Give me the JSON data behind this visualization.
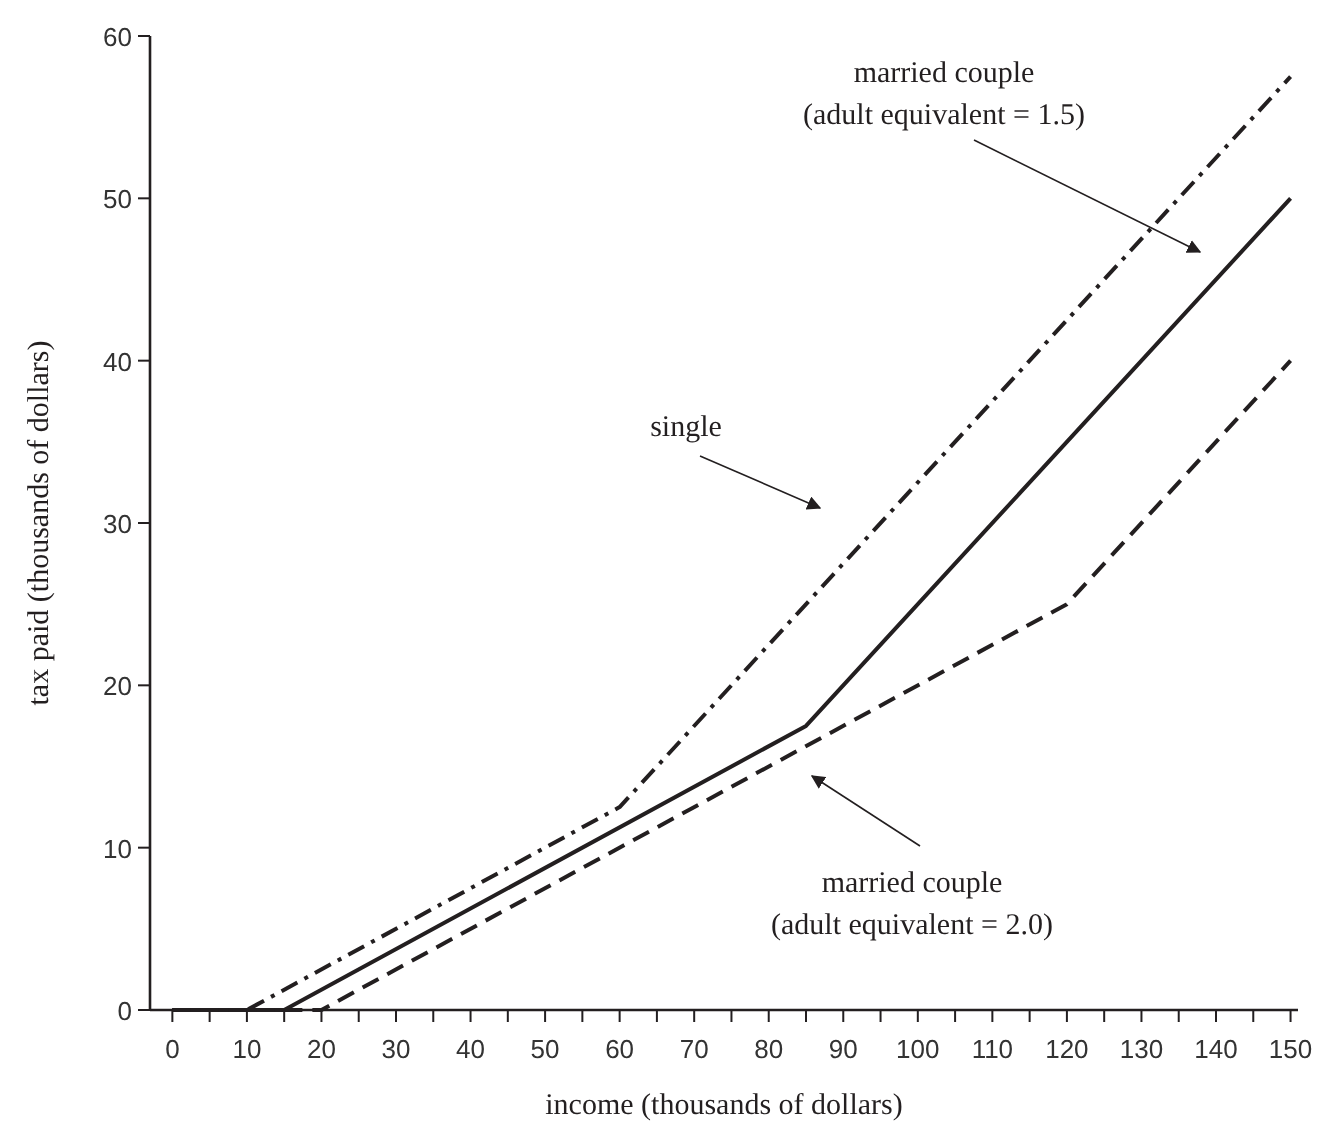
{
  "chart_data": {
    "type": "line",
    "xlabel": "income (thousands of dollars)",
    "ylabel": "tax paid (thousands of dollars)",
    "xlim": [
      -3,
      151
    ],
    "ylim": [
      0,
      60
    ],
    "xticks": [
      0,
      {
        "value": 5,
        "label": null
      },
      10,
      {
        "value": 15,
        "label": null
      },
      20,
      {
        "value": 25,
        "label": null
      },
      30,
      {
        "value": 35,
        "label": null
      },
      40,
      {
        "value": 45,
        "label": null
      },
      50,
      {
        "value": 55,
        "label": null
      },
      60,
      {
        "value": 65,
        "label": null
      },
      70,
      {
        "value": 75,
        "label": null
      },
      80,
      {
        "value": 85,
        "label": null
      },
      90,
      {
        "value": 95,
        "label": null
      },
      100,
      {
        "value": 105,
        "label": null
      },
      110,
      {
        "value": 115,
        "label": null
      },
      120,
      {
        "value": 125,
        "label": null
      },
      130,
      {
        "value": 135,
        "label": null
      },
      140,
      {
        "value": 145,
        "label": null
      },
      150
    ],
    "yticks": [
      0,
      10,
      20,
      30,
      40,
      50,
      60
    ],
    "grid": false,
    "marker": "none",
    "series": [
      {
        "color": "#231f20",
        "line_style": "dashdot",
        "x": [
          0,
          10,
          60,
          150
        ],
        "values": [
          0,
          0,
          12.5,
          57.5
        ]
      },
      {
        "color": "#231f20",
        "line_style": "solid",
        "x": [
          0,
          15,
          85,
          150
        ],
        "values": [
          0,
          0,
          17.5,
          50
        ]
      },
      {
        "color": "#231f20",
        "line_style": "dashed",
        "x": [
          0,
          20,
          120,
          150
        ],
        "values": [
          0,
          0,
          25,
          40
        ]
      }
    ],
    "annotations": [
      "single",
      "married couple\n(adult equivalent = 1.5)",
      "married couple\n(adult equivalent = 2.0)"
    ]
  }
}
